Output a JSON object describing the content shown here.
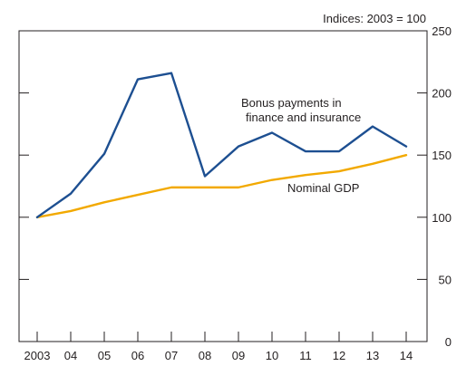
{
  "chart_data": {
    "type": "line",
    "units_label": "Indices: 2003 = 100",
    "x": [
      "2003",
      "04",
      "05",
      "06",
      "07",
      "08",
      "09",
      "10",
      "11",
      "12",
      "13",
      "14"
    ],
    "ylim": [
      0,
      250
    ],
    "yticks": [
      "0",
      "50",
      "100",
      "150",
      "200",
      "250"
    ],
    "grid": false,
    "series": [
      {
        "name": "Bonus payments in finance and insurance",
        "label_lines": [
          "Bonus payments in",
          "finance and insurance"
        ],
        "color": "#1d4f91",
        "values": [
          100,
          119,
          151,
          211,
          216,
          133,
          157,
          168,
          153,
          153,
          173,
          157
        ]
      },
      {
        "name": "Nominal GDP",
        "label_lines": [
          "Nominal GDP"
        ],
        "color": "#f2a900",
        "values": [
          100,
          105,
          112,
          118,
          124,
          124,
          124,
          130,
          134,
          137,
          143,
          150
        ]
      }
    ]
  }
}
